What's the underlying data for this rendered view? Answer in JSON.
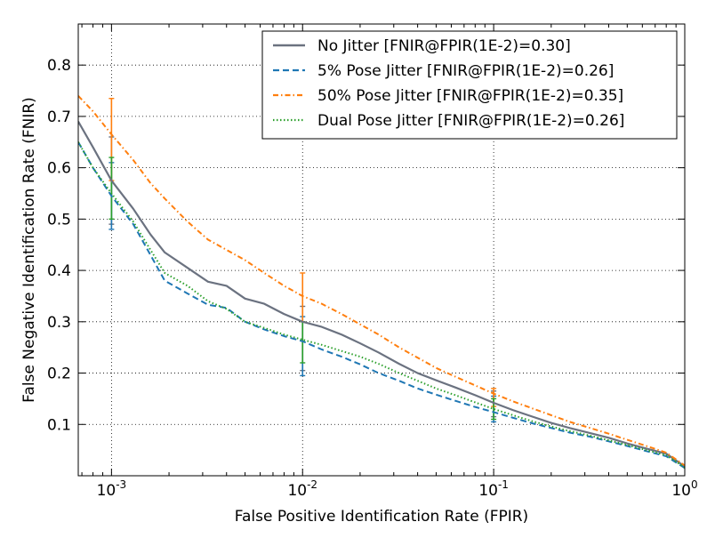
{
  "chart_data": {
    "type": "line",
    "xscale": "log",
    "xlabel": "False Positive Identification Rate (FPIR)",
    "ylabel": "False Negative Identification Rate (FNIR)",
    "xlim": [
      0.00067,
      1.0
    ],
    "ylim": [
      0.0,
      0.88
    ],
    "xticks": [
      {
        "value": 0.001,
        "base": "10",
        "exp": "-3"
      },
      {
        "value": 0.01,
        "base": "10",
        "exp": "-2"
      },
      {
        "value": 0.1,
        "base": "10",
        "exp": "-1"
      },
      {
        "value": 1.0,
        "base": "10",
        "exp": "0"
      }
    ],
    "yticks": [
      {
        "value": 0.1,
        "label": "0.1"
      },
      {
        "value": 0.2,
        "label": "0.2"
      },
      {
        "value": 0.3,
        "label": "0.3"
      },
      {
        "value": 0.4,
        "label": "0.4"
      },
      {
        "value": 0.5,
        "label": "0.5"
      },
      {
        "value": 0.6,
        "label": "0.6"
      },
      {
        "value": 0.7,
        "label": "0.7"
      },
      {
        "value": 0.8,
        "label": "0.8"
      }
    ],
    "grid": true,
    "legend_position": "top-right",
    "series": [
      {
        "name": "No Jitter [FNIR@FPIR(1E-2)=0.30]",
        "color": "#6b7280",
        "style": "solid",
        "x": [
          0.00067,
          0.0008,
          0.001,
          0.0013,
          0.0016,
          0.0019,
          0.0025,
          0.0032,
          0.004,
          0.005,
          0.0063,
          0.008,
          0.01,
          0.0126,
          0.016,
          0.02,
          0.025,
          0.032,
          0.04,
          0.05,
          0.063,
          0.08,
          0.1,
          0.126,
          0.16,
          0.2,
          0.25,
          0.32,
          0.4,
          0.5,
          0.63,
          0.8,
          1.0
        ],
        "y": [
          0.69,
          0.64,
          0.575,
          0.52,
          0.47,
          0.435,
          0.405,
          0.378,
          0.37,
          0.345,
          0.335,
          0.315,
          0.3,
          0.29,
          0.275,
          0.258,
          0.24,
          0.218,
          0.2,
          0.186,
          0.172,
          0.157,
          0.142,
          0.128,
          0.115,
          0.103,
          0.093,
          0.083,
          0.074,
          0.063,
          0.053,
          0.043,
          0.018
        ],
        "errorbars": [
          {
            "x": 0.001,
            "lo": 0.49,
            "hi": 0.66
          },
          {
            "x": 0.01,
            "lo": 0.205,
            "hi": 0.33
          },
          {
            "x": 0.1,
            "lo": 0.115,
            "hi": 0.165
          }
        ]
      },
      {
        "name": "5% Pose Jitter [FNIR@FPIR(1E-2)=0.26]",
        "color": "#1f77b4",
        "style": "dashed",
        "x": [
          0.00067,
          0.0008,
          0.001,
          0.0013,
          0.0016,
          0.0019,
          0.0025,
          0.0032,
          0.004,
          0.005,
          0.0063,
          0.008,
          0.01,
          0.0126,
          0.016,
          0.02,
          0.025,
          0.032,
          0.04,
          0.05,
          0.063,
          0.08,
          0.1,
          0.126,
          0.16,
          0.2,
          0.25,
          0.32,
          0.4,
          0.5,
          0.63,
          0.8,
          1.0
        ],
        "y": [
          0.65,
          0.6,
          0.545,
          0.49,
          0.43,
          0.38,
          0.355,
          0.333,
          0.327,
          0.3,
          0.285,
          0.272,
          0.262,
          0.246,
          0.232,
          0.217,
          0.2,
          0.185,
          0.17,
          0.158,
          0.146,
          0.134,
          0.124,
          0.113,
          0.102,
          0.093,
          0.084,
          0.076,
          0.067,
          0.058,
          0.048,
          0.038,
          0.015
        ],
        "errorbars": [
          {
            "x": 0.001,
            "lo": 0.48,
            "hi": 0.61
          },
          {
            "x": 0.01,
            "lo": 0.195,
            "hi": 0.31
          },
          {
            "x": 0.1,
            "lo": 0.105,
            "hi": 0.155
          }
        ]
      },
      {
        "name": "50% Pose Jitter [FNIR@FPIR(1E-2)=0.35]",
        "color": "#ff7f0e",
        "style": "dashdot",
        "x": [
          0.00067,
          0.0008,
          0.001,
          0.0013,
          0.0016,
          0.0019,
          0.0025,
          0.0032,
          0.004,
          0.005,
          0.0063,
          0.008,
          0.01,
          0.0126,
          0.016,
          0.02,
          0.025,
          0.032,
          0.04,
          0.05,
          0.063,
          0.08,
          0.1,
          0.126,
          0.16,
          0.2,
          0.25,
          0.32,
          0.4,
          0.5,
          0.63,
          0.8,
          1.0
        ],
        "y": [
          0.74,
          0.71,
          0.665,
          0.615,
          0.57,
          0.54,
          0.495,
          0.46,
          0.44,
          0.42,
          0.395,
          0.37,
          0.35,
          0.335,
          0.315,
          0.295,
          0.275,
          0.25,
          0.23,
          0.21,
          0.193,
          0.176,
          0.16,
          0.145,
          0.131,
          0.118,
          0.105,
          0.093,
          0.082,
          0.07,
          0.058,
          0.045,
          0.02
        ],
        "errorbars": [
          {
            "x": 0.001,
            "lo": 0.575,
            "hi": 0.735
          },
          {
            "x": 0.01,
            "lo": 0.3,
            "hi": 0.395
          },
          {
            "x": 0.1,
            "lo": 0.135,
            "hi": 0.17
          }
        ]
      },
      {
        "name": "Dual Pose Jitter [FNIR@FPIR(1E-2)=0.26]",
        "color": "#2ca02c",
        "style": "dotted",
        "x": [
          0.00067,
          0.0008,
          0.001,
          0.0013,
          0.0016,
          0.0019,
          0.0025,
          0.0032,
          0.004,
          0.005,
          0.0063,
          0.008,
          0.01,
          0.0126,
          0.016,
          0.02,
          0.025,
          0.032,
          0.04,
          0.05,
          0.063,
          0.08,
          0.1,
          0.126,
          0.16,
          0.2,
          0.25,
          0.32,
          0.4,
          0.5,
          0.63,
          0.8,
          1.0
        ],
        "y": [
          0.65,
          0.6,
          0.55,
          0.495,
          0.44,
          0.395,
          0.37,
          0.34,
          0.325,
          0.3,
          0.288,
          0.275,
          0.265,
          0.255,
          0.243,
          0.232,
          0.218,
          0.2,
          0.185,
          0.17,
          0.157,
          0.143,
          0.13,
          0.118,
          0.106,
          0.096,
          0.087,
          0.078,
          0.069,
          0.06,
          0.05,
          0.04,
          0.016
        ],
        "errorbars": [
          {
            "x": 0.001,
            "lo": 0.5,
            "hi": 0.62
          },
          {
            "x": 0.01,
            "lo": 0.22,
            "hi": 0.3
          },
          {
            "x": 0.1,
            "lo": 0.11,
            "hi": 0.15
          }
        ]
      }
    ]
  }
}
